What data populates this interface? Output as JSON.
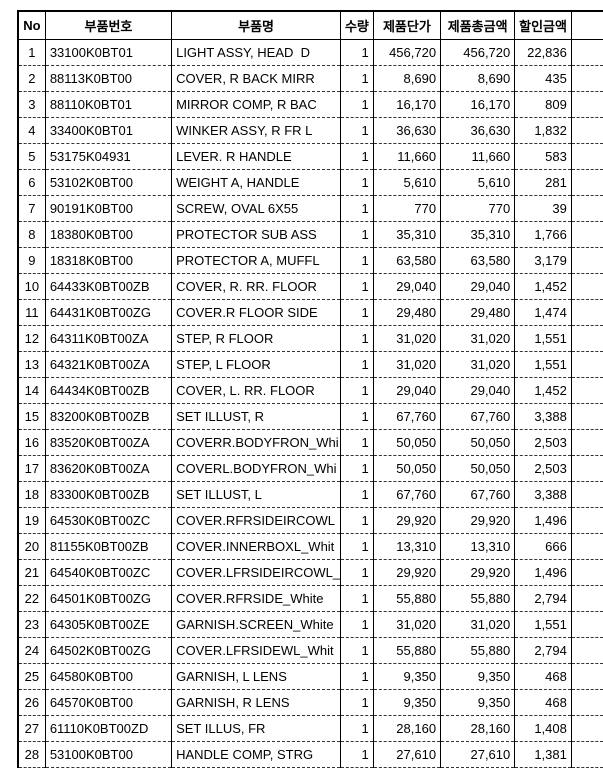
{
  "colors": {
    "background": "#ffffff",
    "text": "#000000",
    "border_solid": "#000000",
    "border_dashed": "#333333"
  },
  "table": {
    "columns": [
      {
        "key": "no",
        "label": "No"
      },
      {
        "key": "part_no",
        "label": "부품번호"
      },
      {
        "key": "part_name",
        "label": "부품명"
      },
      {
        "key": "qty",
        "label": "수량"
      },
      {
        "key": "unit_price",
        "label": "제품단가"
      },
      {
        "key": "total_price",
        "label": "제품총금액"
      },
      {
        "key": "discount",
        "label": "할인금액"
      },
      {
        "key": "extra",
        "label": ""
      }
    ],
    "rows": [
      {
        "no": "1",
        "part_no": "33100K0BT01",
        "part_name": "LIGHT ASSY, HEAD  D",
        "qty": "1",
        "unit_price": "456,720",
        "total_price": "456,720",
        "discount": "22,836"
      },
      {
        "no": "2",
        "part_no": "88113K0BT00",
        "part_name": "COVER, R BACK MIRR",
        "qty": "1",
        "unit_price": "8,690",
        "total_price": "8,690",
        "discount": "435"
      },
      {
        "no": "3",
        "part_no": "88110K0BT01",
        "part_name": "MIRROR COMP, R BAC",
        "qty": "1",
        "unit_price": "16,170",
        "total_price": "16,170",
        "discount": "809"
      },
      {
        "no": "4",
        "part_no": "33400K0BT01",
        "part_name": "WINKER ASSY, R FR L",
        "qty": "1",
        "unit_price": "36,630",
        "total_price": "36,630",
        "discount": "1,832"
      },
      {
        "no": "5",
        "part_no": "53175K04931",
        "part_name": "LEVER. R HANDLE",
        "qty": "1",
        "unit_price": "11,660",
        "total_price": "11,660",
        "discount": "583"
      },
      {
        "no": "6",
        "part_no": "53102K0BT00",
        "part_name": "WEIGHT A, HANDLE",
        "qty": "1",
        "unit_price": "5,610",
        "total_price": "5,610",
        "discount": "281"
      },
      {
        "no": "7",
        "part_no": "90191K0BT00",
        "part_name": "SCREW, OVAL 6X55",
        "qty": "1",
        "unit_price": "770",
        "total_price": "770",
        "discount": "39"
      },
      {
        "no": "8",
        "part_no": "18380K0BT00",
        "part_name": "PROTECTOR SUB ASS",
        "qty": "1",
        "unit_price": "35,310",
        "total_price": "35,310",
        "discount": "1,766"
      },
      {
        "no": "9",
        "part_no": "18318K0BT00",
        "part_name": "PROTECTOR A, MUFFL",
        "qty": "1",
        "unit_price": "63,580",
        "total_price": "63,580",
        "discount": "3,179"
      },
      {
        "no": "10",
        "part_no": "64433K0BT00ZB",
        "part_name": "COVER, R. RR. FLOOR",
        "qty": "1",
        "unit_price": "29,040",
        "total_price": "29,040",
        "discount": "1,452"
      },
      {
        "no": "11",
        "part_no": "64431K0BT00ZG",
        "part_name": "COVER.R FLOOR SIDE",
        "qty": "1",
        "unit_price": "29,480",
        "total_price": "29,480",
        "discount": "1,474"
      },
      {
        "no": "12",
        "part_no": "64311K0BT00ZA",
        "part_name": "STEP, R FLOOR",
        "qty": "1",
        "unit_price": "31,020",
        "total_price": "31,020",
        "discount": "1,551"
      },
      {
        "no": "13",
        "part_no": "64321K0BT00ZA",
        "part_name": "STEP, L FLOOR",
        "qty": "1",
        "unit_price": "31,020",
        "total_price": "31,020",
        "discount": "1,551"
      },
      {
        "no": "14",
        "part_no": "64434K0BT00ZB",
        "part_name": "COVER, L. RR. FLOOR",
        "qty": "1",
        "unit_price": "29,040",
        "total_price": "29,040",
        "discount": "1,452"
      },
      {
        "no": "15",
        "part_no": "83200K0BT00ZB",
        "part_name": "SET ILLUST, R",
        "qty": "1",
        "unit_price": "67,760",
        "total_price": "67,760",
        "discount": "3,388"
      },
      {
        "no": "16",
        "part_no": "83520K0BT00ZA",
        "part_name": "COVERR.BODYFRON_Whi",
        "qty": "1",
        "unit_price": "50,050",
        "total_price": "50,050",
        "discount": "2,503"
      },
      {
        "no": "17",
        "part_no": "83620K0BT00ZA",
        "part_name": "COVERL.BODYFRON_Whi",
        "qty": "1",
        "unit_price": "50,050",
        "total_price": "50,050",
        "discount": "2,503"
      },
      {
        "no": "18",
        "part_no": "83300K0BT00ZB",
        "part_name": "SET ILLUST, L",
        "qty": "1",
        "unit_price": "67,760",
        "total_price": "67,760",
        "discount": "3,388"
      },
      {
        "no": "19",
        "part_no": "64530K0BT00ZC",
        "part_name": "COVER.RFRSIDEIRCOWL",
        "qty": "1",
        "unit_price": "29,920",
        "total_price": "29,920",
        "discount": "1,496"
      },
      {
        "no": "20",
        "part_no": "81155K0BT00ZB",
        "part_name": "COVER.INNERBOXL_Whit",
        "qty": "1",
        "unit_price": "13,310",
        "total_price": "13,310",
        "discount": "666"
      },
      {
        "no": "21",
        "part_no": "64540K0BT00ZC",
        "part_name": "COVER.LFRSIDEIRCOWL_",
        "qty": "1",
        "unit_price": "29,920",
        "total_price": "29,920",
        "discount": "1,496"
      },
      {
        "no": "22",
        "part_no": "64501K0BT00ZG",
        "part_name": "COVER.RFRSIDE_White",
        "qty": "1",
        "unit_price": "55,880",
        "total_price": "55,880",
        "discount": "2,794"
      },
      {
        "no": "23",
        "part_no": "64305K0BT00ZE",
        "part_name": "GARNISH.SCREEN_White",
        "qty": "1",
        "unit_price": "31,020",
        "total_price": "31,020",
        "discount": "1,551"
      },
      {
        "no": "24",
        "part_no": "64502K0BT00ZG",
        "part_name": "COVER.LFRSIDEWL_Whit",
        "qty": "1",
        "unit_price": "55,880",
        "total_price": "55,880",
        "discount": "2,794"
      },
      {
        "no": "25",
        "part_no": "64580K0BT00",
        "part_name": "GARNISH, L LENS",
        "qty": "1",
        "unit_price": "9,350",
        "total_price": "9,350",
        "discount": "468"
      },
      {
        "no": "26",
        "part_no": "64570K0BT00",
        "part_name": "GARNISH, R LENS",
        "qty": "1",
        "unit_price": "9,350",
        "total_price": "9,350",
        "discount": "468"
      },
      {
        "no": "27",
        "part_no": "61110K0BT00ZD",
        "part_name": "SET ILLUS, FR",
        "qty": "1",
        "unit_price": "28,160",
        "total_price": "28,160",
        "discount": "1,408"
      },
      {
        "no": "28",
        "part_no": "53100K0BT00",
        "part_name": "HANDLE COMP, STRG",
        "qty": "1",
        "unit_price": "27,610",
        "total_price": "27,610",
        "discount": "1,381"
      }
    ]
  }
}
